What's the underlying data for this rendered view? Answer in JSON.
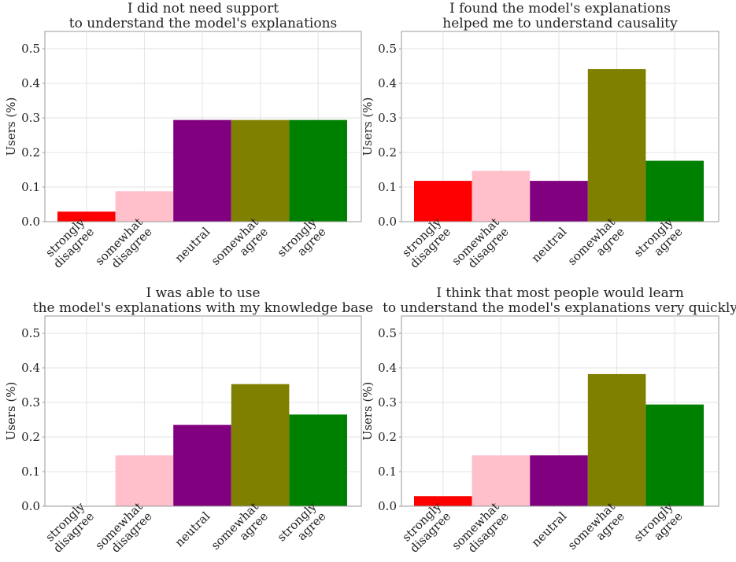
{
  "chart_data": [
    {
      "type": "bar",
      "title_lines": [
        "I did not need support",
        "to understand the model's explanations"
      ],
      "ylabel": "Users (%)",
      "ylim": [
        0,
        0.55
      ],
      "yticks": [
        "0.0",
        "0.1",
        "0.2",
        "0.3",
        "0.4",
        "0.5"
      ],
      "grid": true,
      "categories": [
        [
          "strongly",
          "disagree"
        ],
        [
          "somewhat",
          "disagree"
        ],
        [
          "neutral"
        ],
        [
          "somewhat",
          "agree"
        ],
        [
          "strongly",
          "agree"
        ]
      ],
      "values": [
        0.029,
        0.088,
        0.294,
        0.294,
        0.294
      ]
    },
    {
      "type": "bar",
      "title_lines": [
        "I found the model's explanations",
        "helped me to understand causality"
      ],
      "ylabel": "Users (%)",
      "ylim": [
        0,
        0.55
      ],
      "yticks": [
        "0.0",
        "0.1",
        "0.2",
        "0.3",
        "0.4",
        "0.5"
      ],
      "grid": true,
      "categories": [
        [
          "strongly",
          "disagree"
        ],
        [
          "somewhat",
          "disagree"
        ],
        [
          "neutral"
        ],
        [
          "somewhat",
          "agree"
        ],
        [
          "strongly",
          "agree"
        ]
      ],
      "values": [
        0.118,
        0.147,
        0.118,
        0.441,
        0.176
      ]
    },
    {
      "type": "bar",
      "title_lines": [
        "I was able to use",
        "the model's explanations with my knowledge base"
      ],
      "ylabel": "Users (%)",
      "ylim": [
        0,
        0.55
      ],
      "yticks": [
        "0.0",
        "0.1",
        "0.2",
        "0.3",
        "0.4",
        "0.5"
      ],
      "grid": true,
      "categories": [
        [
          "strongly",
          "disagree"
        ],
        [
          "somewhat",
          "disagree"
        ],
        [
          "neutral"
        ],
        [
          "somewhat",
          "agree"
        ],
        [
          "strongly",
          "agree"
        ]
      ],
      "values": [
        0.0,
        0.147,
        0.235,
        0.353,
        0.265
      ]
    },
    {
      "type": "bar",
      "title_lines": [
        "I think that most people would learn",
        "to understand the model's explanations very quickly"
      ],
      "ylabel": "Users (%)",
      "ylim": [
        0,
        0.55
      ],
      "yticks": [
        "0.0",
        "0.1",
        "0.2",
        "0.3",
        "0.4",
        "0.5"
      ],
      "grid": true,
      "categories": [
        [
          "strongly",
          "disagree"
        ],
        [
          "somewhat",
          "disagree"
        ],
        [
          "neutral"
        ],
        [
          "somewhat",
          "agree"
        ],
        [
          "strongly",
          "agree"
        ]
      ],
      "values": [
        0.029,
        0.147,
        0.147,
        0.382,
        0.294
      ]
    }
  ],
  "bar_colors": [
    "#ff0000",
    "#ffc0cb",
    "#800080",
    "#808000",
    "#008000"
  ],
  "grid_color": "#e3e3e3",
  "axis_color": "#9a9a9a"
}
